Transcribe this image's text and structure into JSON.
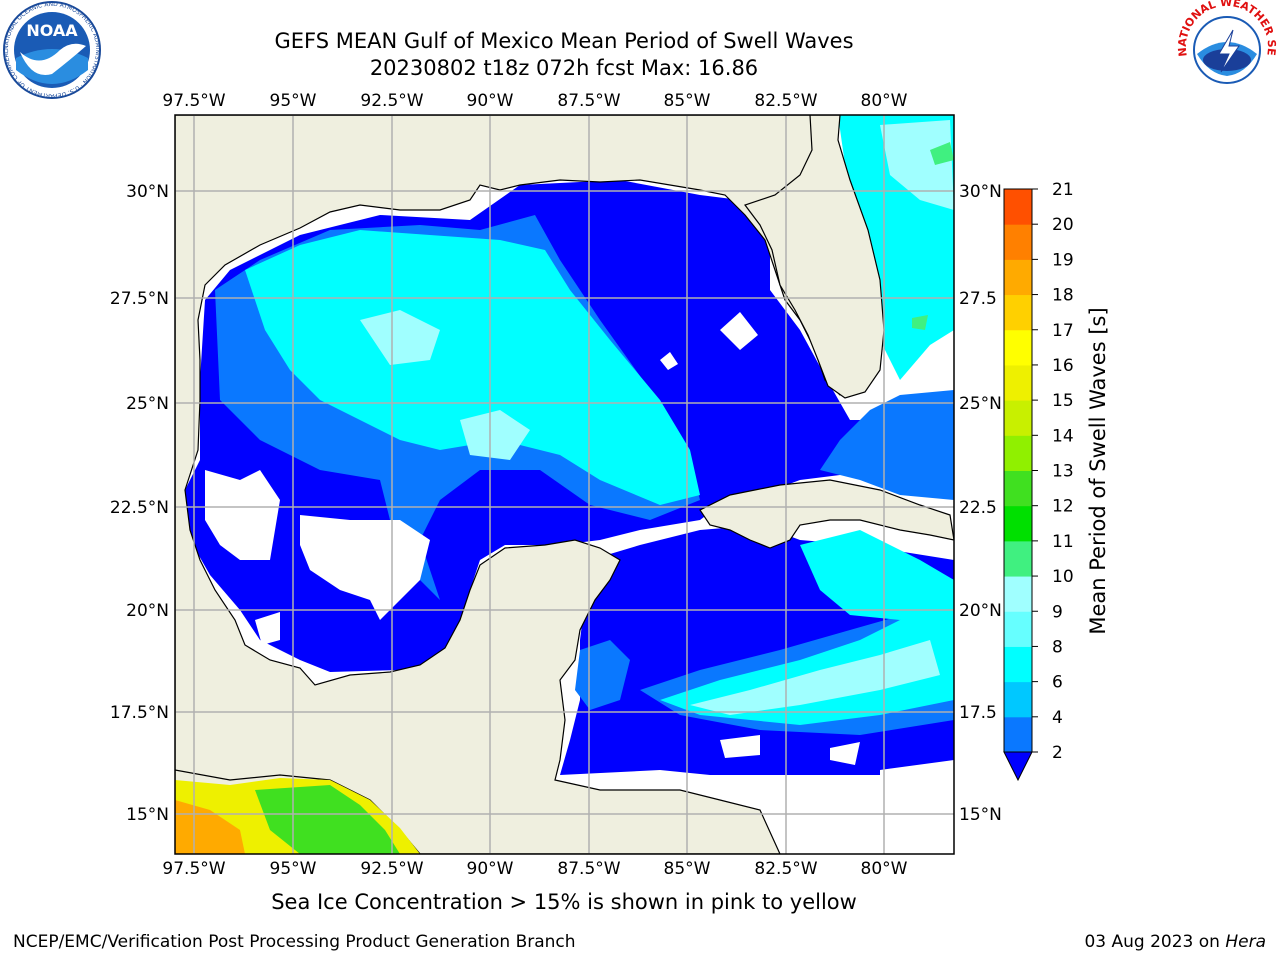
{
  "title": {
    "line1": "GEFS MEAN Gulf of Mexico Mean Period of Swell Waves",
    "line2": "20230802 t18z 072h fcst   Max: 16.86"
  },
  "map": {
    "lon_labels": [
      "97.5°W",
      "95°W",
      "92.5°W",
      "90°W",
      "87.5°W",
      "85°W",
      "82.5°W",
      "80°W"
    ],
    "lat_labels_left": [
      "30°N",
      "27.5°N",
      "25°N",
      "22.5°N",
      "20°N",
      "17.5°N",
      "15°N"
    ],
    "lat_labels_right": [
      "30°N",
      "27.5",
      "25°N",
      "22.5",
      "20°N",
      "17.5",
      "15°N"
    ],
    "lon_range": [
      -98,
      -78.2
    ],
    "lat_range": [
      14,
      32
    ]
  },
  "colorbar": {
    "label": "Mean Period of Swell Waves [s]",
    "ticks": [
      "2",
      "4",
      "6",
      "8",
      "9",
      "10",
      "11",
      "12",
      "13",
      "14",
      "15",
      "16",
      "17",
      "18",
      "19",
      "20",
      "21"
    ],
    "colors": [
      "#0a78ff",
      "#00c8ff",
      "#00ffff",
      "#66ffff",
      "#a0ffff",
      "#40f080",
      "#00e000",
      "#40e020",
      "#90f000",
      "#c8f000",
      "#eef000",
      "#ffff00",
      "#ffd000",
      "#ffaa00",
      "#ff8000",
      "#ff5000",
      "#ff2000",
      "#ff0000"
    ],
    "extend_color": "#0000ff"
  },
  "note": "Sea Ice Concentration > 15% is shown in pink to yellow",
  "footer": {
    "left": "NCEP/EMC/Verification Post Processing Product Generation Branch",
    "right_date": "03 Aug 2023 on ",
    "right_host": "Hera"
  },
  "logos": {
    "noaa_text": "NOAA",
    "noaa_ring_text": "NATIONAL OCEANIC AND ATMOSPHERIC ADMINISTRATION · U.S. DEPARTMENT OF COMMERCE",
    "nws_ring_text": "NATIONAL WEATHER SERVICE"
  },
  "colors": {
    "land": "#efefdf",
    "deep": "#0000ff",
    "mid": "#0a78ff",
    "cyan": "#00ffff",
    "light": "#a0ffff",
    "grid": "#b0b0b0"
  }
}
